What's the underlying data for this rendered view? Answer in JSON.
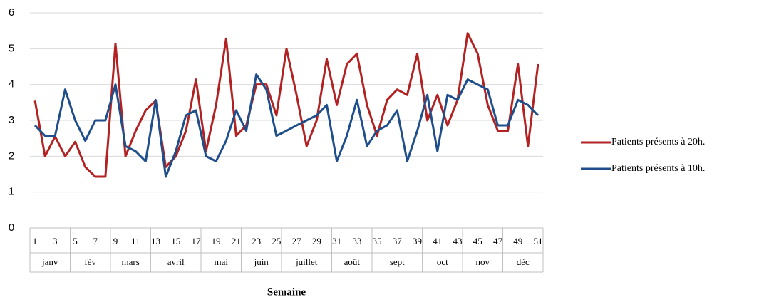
{
  "chart_data": {
    "type": "line",
    "x_label": "Semaine",
    "categories": [
      "1",
      null,
      "3",
      null,
      "5",
      null,
      "7",
      null,
      "9",
      null,
      "11",
      null,
      "13",
      null,
      "15",
      null,
      "17",
      null,
      "19",
      null,
      "21",
      null,
      "23",
      null,
      "25",
      null,
      "27",
      null,
      "29",
      null,
      "31",
      null,
      "33",
      null,
      "35",
      null,
      "37",
      null,
      "39",
      null,
      "41",
      null,
      "43",
      null,
      "45",
      null,
      "47",
      null,
      "49",
      null,
      "51"
    ],
    "x_groups": [
      {
        "label": "janv",
        "span": 4
      },
      {
        "label": "fév",
        "span": 4
      },
      {
        "label": "mars",
        "span": 4
      },
      {
        "label": "avril",
        "span": 5
      },
      {
        "label": "mai",
        "span": 4
      },
      {
        "label": "juin",
        "span": 4
      },
      {
        "label": "juillet",
        "span": 5
      },
      {
        "label": "août",
        "span": 4
      },
      {
        "label": "sept",
        "span": 5
      },
      {
        "label": "oct",
        "span": 4
      },
      {
        "label": "nov",
        "span": 4
      },
      {
        "label": "déc",
        "span": 4
      }
    ],
    "series": [
      {
        "name": "Patients présents à 20h.",
        "color": "#b22222",
        "values": [
          3.55,
          2.0,
          2.55,
          2.0,
          2.4,
          1.7,
          1.43,
          1.43,
          5.14,
          2.0,
          2.7,
          3.28,
          3.55,
          1.7,
          2.0,
          2.7,
          4.14,
          2.14,
          3.43,
          5.28,
          2.57,
          2.86,
          4.0,
          4.0,
          3.14,
          5.0,
          3.71,
          2.28,
          3.0,
          4.71,
          3.43,
          4.57,
          4.86,
          3.43,
          2.57,
          3.57,
          3.86,
          3.71,
          4.86,
          3.0,
          3.71,
          2.86,
          3.57,
          5.43,
          4.86,
          3.43,
          2.71,
          2.71,
          4.57,
          2.28,
          4.57
        ]
      },
      {
        "name": "Patients présents à 10h.",
        "color": "#1f4e8c",
        "values": [
          2.86,
          2.57,
          2.57,
          3.86,
          3.0,
          2.43,
          3.0,
          3.0,
          4.0,
          2.28,
          2.14,
          1.86,
          3.57,
          1.43,
          2.14,
          3.14,
          3.28,
          2.0,
          1.86,
          2.43,
          3.28,
          2.71,
          4.28,
          3.86,
          2.57,
          2.71,
          2.86,
          3.0,
          3.14,
          3.43,
          1.86,
          2.57,
          3.57,
          2.28,
          2.71,
          2.86,
          3.28,
          1.86,
          2.71,
          3.71,
          2.14,
          3.71,
          3.57,
          4.14,
          4.0,
          3.86,
          2.86,
          2.86,
          3.57,
          3.43,
          3.14
        ]
      }
    ],
    "ylim": [
      0,
      6
    ],
    "yticks": [
      0,
      1,
      2,
      3,
      4,
      5,
      6
    ],
    "grid": true,
    "legend": "right"
  }
}
